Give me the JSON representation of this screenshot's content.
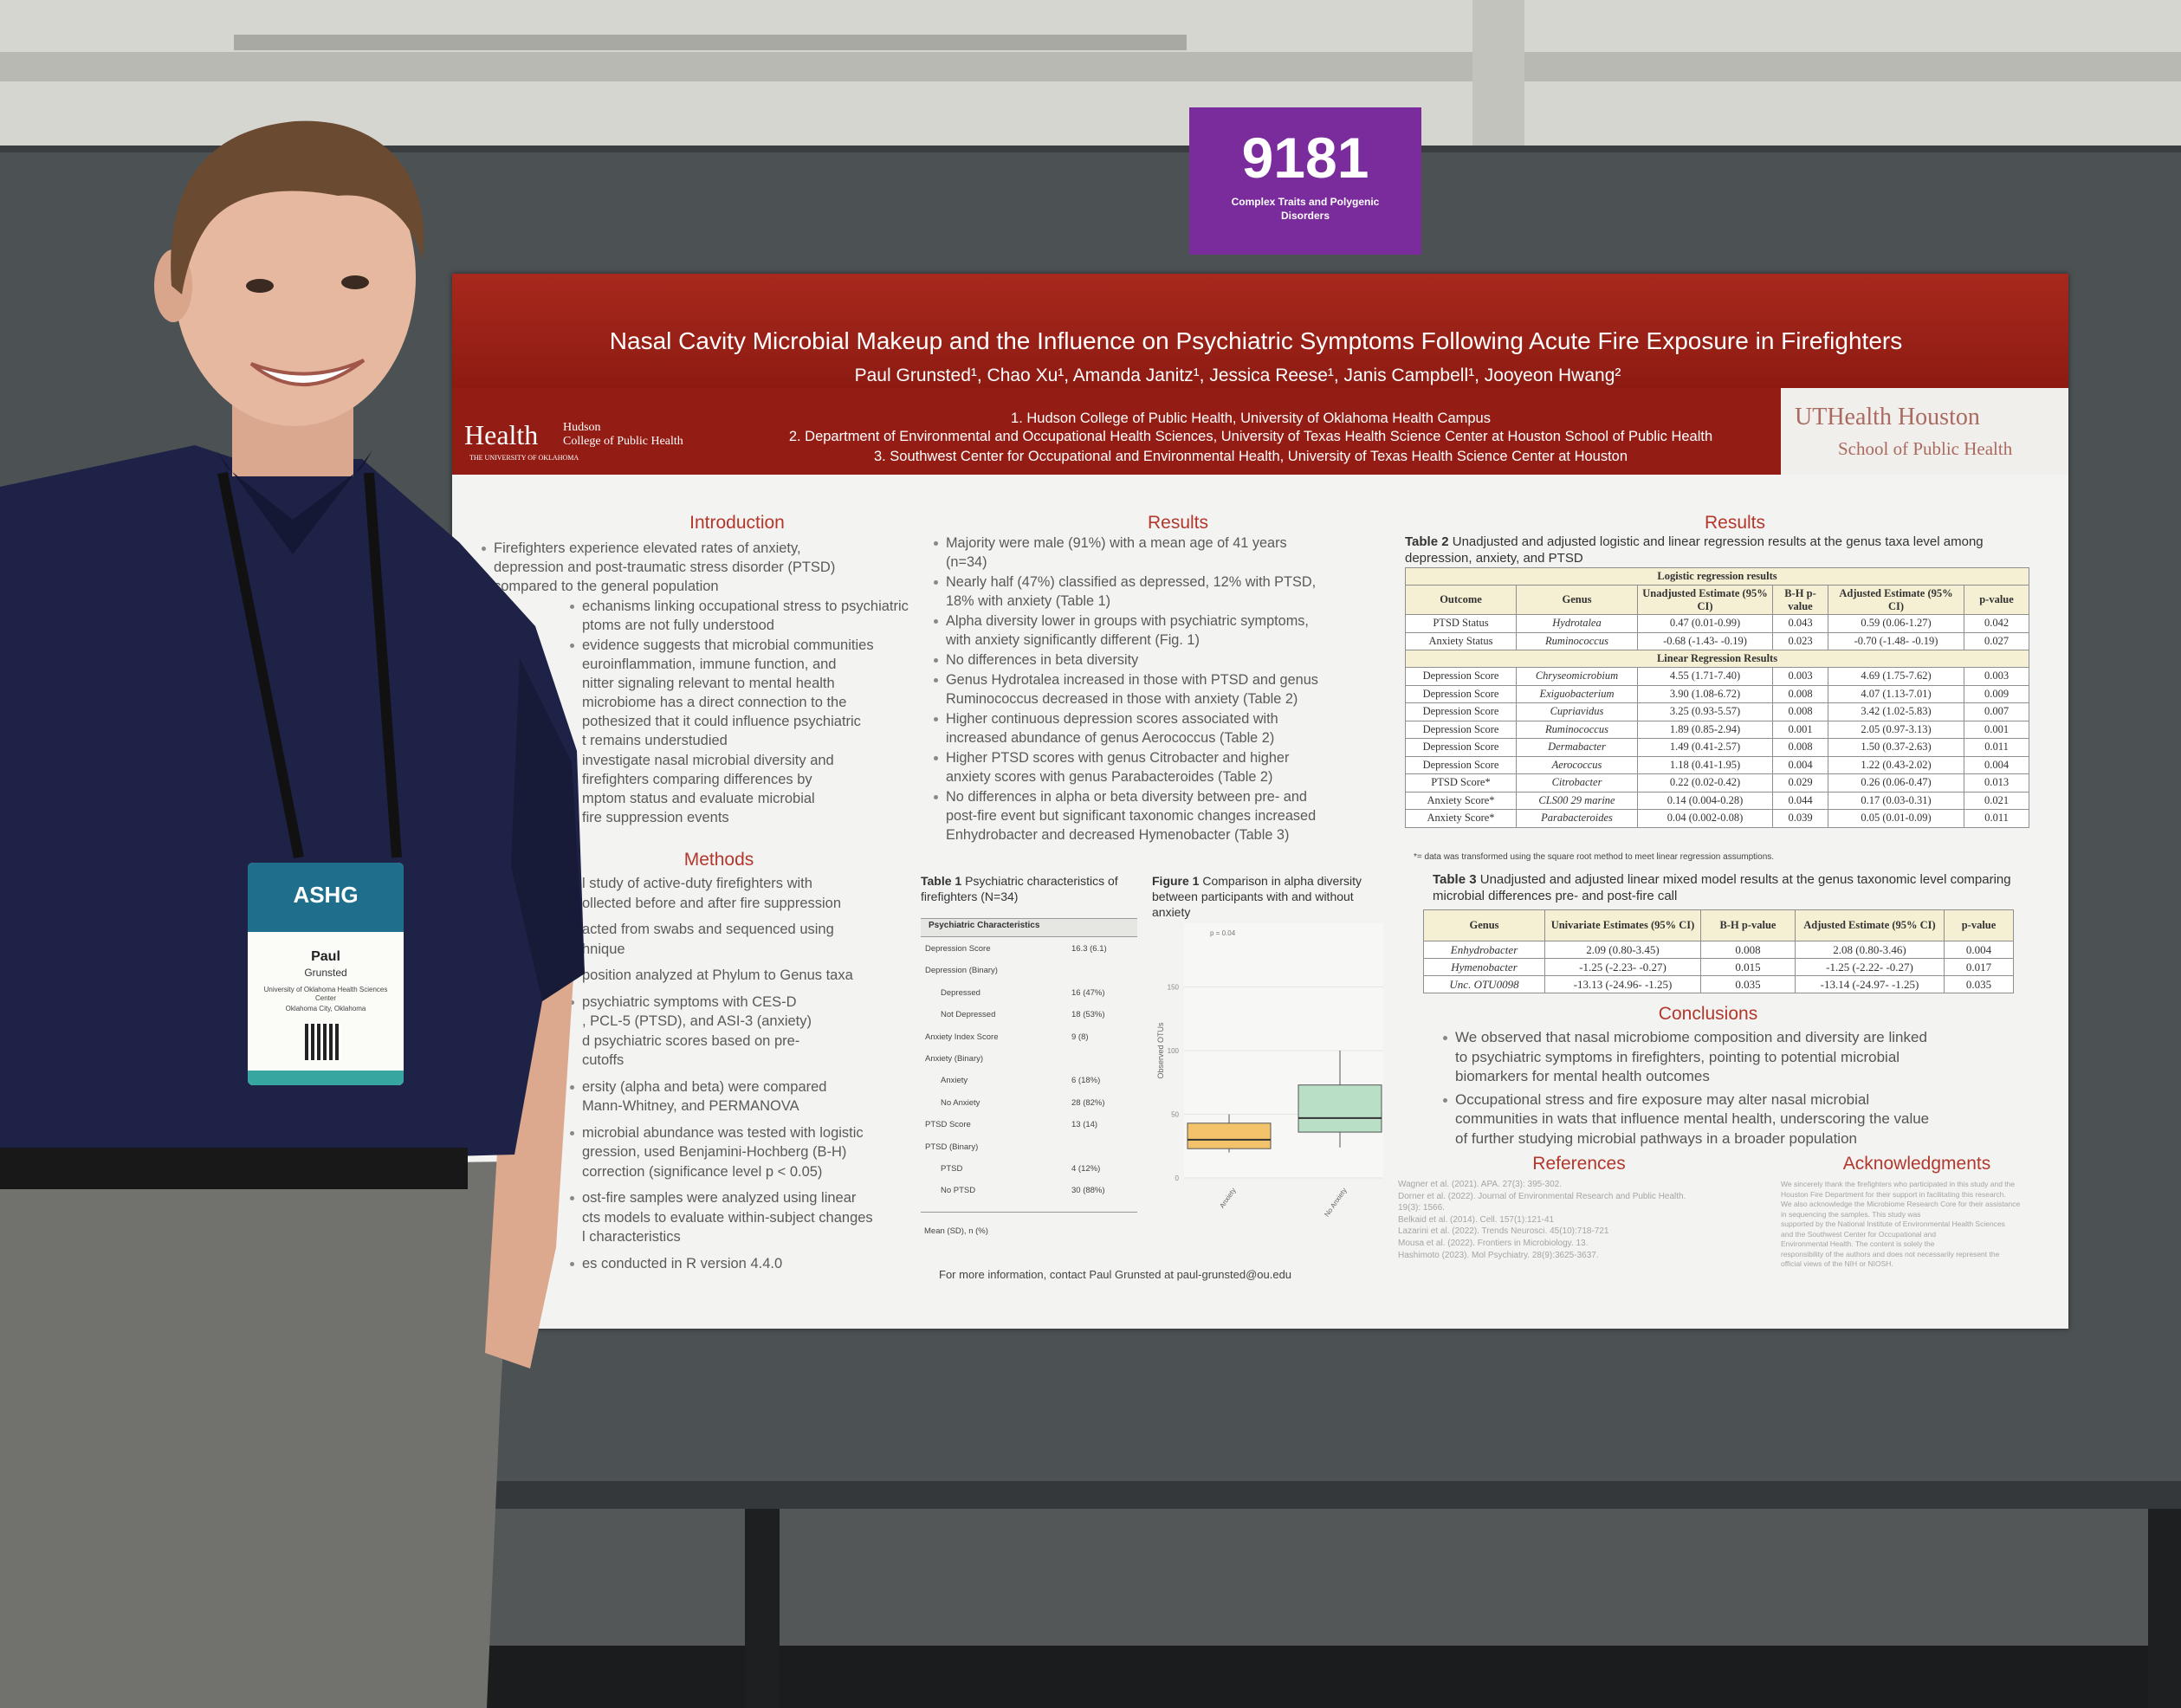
{
  "booth": {
    "number": "9181",
    "topic": [
      "Complex Traits and Polygenic",
      "Disorders"
    ]
  },
  "poster": {
    "title": "Nasal Cavity Microbial Makeup and the Influence on Psychiatric Symptoms Following Acute Fire Exposure in Firefighters",
    "authors": "Paul Grunsted¹, Chao Xu¹, Amanda Janitz¹, Jessica Reese¹, Janis Campbell¹, Jooyeon Hwang²",
    "affiliations": [
      "1.  Hudson College of Public Health, University of Oklahoma Health Campus",
      "2.  Department of Environmental and Occupational Health Sciences, University of Texas Health Science Center at Houston School of Public Health",
      "3.  Southwest Center for Occupational and Environmental Health, University of Texas Health Science Center at Houston"
    ],
    "logo_left": {
      "mark": "Health",
      "line1": "Hudson",
      "line2": "College of Public Health",
      "line3": "THE UNIVERSITY OF OKLAHOMA"
    },
    "logo_right": {
      "line1": "UTHealth Houston",
      "line2": "School of Public Health"
    },
    "introduction": {
      "heading": "Introduction",
      "items": [
        [
          "Firefighters experience elevated rates of anxiety,",
          "depression and post-traumatic stress disorder (PTSD)",
          "compared to the general population"
        ],
        [
          "echanisms linking occupational stress to psychiatric",
          "ptoms are not fully understood"
        ],
        [
          "evidence suggests that microbial communities",
          "euroinflammation, immune function, and",
          "nitter signaling relevant to mental health",
          "microbiome has a direct connection to the",
          "pothesized that it could influence psychiatric",
          "t remains understudied"
        ],
        [
          "investigate nasal microbial diversity and",
          "firefighters comparing differences by",
          "mptom status and evaluate microbial",
          "fire suppression events"
        ]
      ]
    },
    "methods": {
      "heading": "Methods",
      "items": [
        [
          "l study of active-duty firefighters with",
          "ollected before and after fire suppression"
        ],
        [
          "acted from swabs and sequenced using",
          "hnique"
        ],
        [
          "position analyzed at Phylum to Genus taxa"
        ],
        [
          "psychiatric symptoms with CES-D",
          ", PCL-5 (PTSD), and ASI-3 (anxiety)",
          "d psychiatric scores based on pre-",
          "cutoffs"
        ],
        [
          "ersity (alpha and beta) were compared",
          "Mann-Whitney, and PERMANOVA"
        ],
        [
          "microbial abundance was tested with logistic",
          "gression, used Benjamini-Hochberg (B-H)",
          "correction (significance level p < 0.05)"
        ],
        [
          "ost-fire samples were analyzed using linear",
          "cts models to evaluate within-subject changes",
          "l characteristics"
        ],
        [
          "es conducted in R version 4.4.0"
        ]
      ]
    },
    "results": {
      "heading": "Results",
      "items": [
        [
          "Majority were male (91%) with a mean age of 41 years",
          "(n=34)"
        ],
        [
          "Nearly half (47%) classified as depressed, 12% with PTSD,",
          "18% with anxiety (Table 1)"
        ],
        [
          "Alpha diversity lower in groups with psychiatric symptoms,",
          "with anxiety significantly different (Fig. 1)"
        ],
        [
          "No differences in beta diversity"
        ],
        [
          "Genus Hydrotalea increased in those with PTSD and genus",
          "Ruminococcus decreased in those with anxiety (Table 2)"
        ],
        [
          "Higher continuous depression scores associated with",
          "increased abundance of genus Aerococcus (Table 2)"
        ],
        [
          "Higher PTSD scores with genus Citrobacter and higher",
          "anxiety scores with genus Parabacteroides (Table 2)"
        ],
        [
          "No differences in alpha or beta diversity between pre- and",
          "post-fire event but significant taxonomic changes increased",
          "Enhydrobacter and decreased Hymenobacter (Table 3)"
        ]
      ]
    },
    "table1": {
      "label": "Table 1",
      "caption": "Psychiatric characteristics of firefighters (N=34)",
      "header": "Psychiatric Characteristics",
      "rows": [
        {
          "label": "Depression Score",
          "value": "16.3 (6.1)"
        },
        {
          "label": "Depression (Binary)",
          "children": [
            {
              "label": "Depressed",
              "value": "16 (47%)"
            },
            {
              "label": "Not Depressed",
              "value": "18 (53%)"
            }
          ]
        },
        {
          "label": "Anxiety Index Score",
          "value": "9 (8)"
        },
        {
          "label": "Anxiety (Binary)",
          "children": [
            {
              "label": "Anxiety",
              "value": "6 (18%)"
            },
            {
              "label": "No Anxiety",
              "value": "28 (82%)"
            }
          ]
        },
        {
          "label": "PTSD Score",
          "value": "13 (14)"
        },
        {
          "label": "PTSD (Binary)",
          "children": [
            {
              "label": "PTSD",
              "value": "4 (12%)"
            },
            {
              "label": "No PTSD",
              "value": "30 (88%)"
            }
          ]
        }
      ],
      "footnote": "Mean (SD), n (%)"
    },
    "figure1": {
      "label": "Figure 1",
      "caption": "Comparison in alpha diversity between participants with and without anxiety"
    },
    "contact": "For more information, contact Paul Grunsted at paul-grunsted@ou.edu",
    "results2": {
      "heading": "Results"
    },
    "table2": {
      "label": "Table 2",
      "caption": "Unadjusted and adjusted logistic and linear regression results at the genus taxa level among depression, anxiety, and PTSD",
      "header": [
        "Outcome",
        "Genus",
        "Unadjusted Estimate (95% CI)",
        "B-H p-value",
        "Adjusted Estimate (95% CI)",
        "p-value"
      ],
      "sections": [
        {
          "title": "Logistic regression results",
          "rows": [
            [
              "PTSD Status",
              "Hydrotalea",
              "0.47 (0.01-0.99)",
              "0.043",
              "0.59 (0.06-1.27)",
              "0.042"
            ],
            [
              "Anxiety Status",
              "Ruminococcus",
              "-0.68 (-1.43- -0.19)",
              "0.023",
              "-0.70 (-1.48- -0.19)",
              "0.027"
            ]
          ]
        },
        {
          "title": "Linear Regression Results",
          "rows": [
            [
              "Depression Score",
              "Chryseomicrobium",
              "4.55 (1.71-7.40)",
              "0.003",
              "4.69 (1.75-7.62)",
              "0.003"
            ],
            [
              "Depression Score",
              "Exiguobacterium",
              "3.90 (1.08-6.72)",
              "0.008",
              "4.07 (1.13-7.01)",
              "0.009"
            ],
            [
              "Depression Score",
              "Cupriavidus",
              "3.25 (0.93-5.57)",
              "0.008",
              "3.42 (1.02-5.83)",
              "0.007"
            ],
            [
              "Depression Score",
              "Ruminococcus",
              "1.89 (0.85-2.94)",
              "0.001",
              "2.05 (0.97-3.13)",
              "0.001"
            ],
            [
              "Depression Score",
              "Dermabacter",
              "1.49 (0.41-2.57)",
              "0.008",
              "1.50 (0.37-2.63)",
              "0.011"
            ],
            [
              "Depression Score",
              "Aerococcus",
              "1.18 (0.41-1.95)",
              "0.004",
              "1.22 (0.43-2.02)",
              "0.004"
            ],
            [
              "PTSD Score*",
              "Citrobacter",
              "0.22 (0.02-0.42)",
              "0.029",
              "0.26 (0.06-0.47)",
              "0.013"
            ],
            [
              "Anxiety Score*",
              "CLS00 29 marine",
              "0.14 (0.004-0.28)",
              "0.044",
              "0.17 (0.03-0.31)",
              "0.021"
            ],
            [
              "Anxiety Score*",
              "Parabacteroides",
              "0.04 (0.002-0.08)",
              "0.039",
              "0.05 (0.01-0.09)",
              "0.011"
            ]
          ]
        }
      ],
      "footnote": "*= data was transformed using the square root method to meet linear regression assumptions."
    },
    "table3": {
      "label": "Table 3",
      "caption": "Unadjusted and adjusted linear mixed model results at the genus taxonomic level comparing microbial differences pre- and post-fire call",
      "header": [
        "Genus",
        "Univariate Estimates (95% CI)",
        "B-H p-value",
        "Adjusted Estimate (95% CI)",
        "p-value"
      ],
      "rows": [
        [
          "Enhydrobacter",
          "2.09 (0.80-3.45)",
          "0.008",
          "2.08 (0.80-3.46)",
          "0.004"
        ],
        [
          "Hymenobacter",
          "-1.25 (-2.23- -0.27)",
          "0.015",
          "-1.25 (-2.22- -0.27)",
          "0.017"
        ],
        [
          "Unc. OTU0098",
          "-13.13 (-24.96- -1.25)",
          "0.035",
          "-13.14 (-24.97- -1.25)",
          "0.035"
        ]
      ]
    },
    "conclusions": {
      "heading": "Conclusions",
      "items": [
        [
          "We observed that nasal microbiome composition and diversity are linked",
          "to psychiatric symptoms in firefighters, pointing to potential microbial",
          "biomarkers for mental health outcomes"
        ],
        [
          "Occupational stress and fire exposure may alter nasal microbial",
          "communities in wats that influence mental health, underscoring the value",
          "of further studying microbial pathways in a broader population"
        ]
      ]
    },
    "references": {
      "heading": "References",
      "lines": [
        "Wagner et al. (2021). APA. 27(3): 395-302.",
        "Dorner et al. (2022). Journal of Environmental Research and Public Health.",
        "19(3): 1566.",
        "Belkaid et al. (2014). Cell. 157(1):121-41",
        "Lazarini et al. (2022). Trends Neurosci. 45(10):718-721",
        "Mousa et al. (2022). Frontiers in Microbiology. 13.",
        "Hashimoto (2023). Mol Psychiatry. 28(9):3625-3637."
      ]
    },
    "acknowledgments": {
      "heading": "Acknowledgments",
      "lines": [
        "We sincerely thank the firefighters who participated in this study and the",
        "Houston Fire Department for their support in facilitating this research.",
        "We also acknowledge the Microbiome Research Core for their assistance",
        "in sequencing the samples. This study was",
        "supported by the National Institute of Environmental Health Sciences",
        "and the Southwest Center for Occupational and",
        "Environmental Health. The content is solely the",
        "responsibility of the authors and does not necessarily represent the",
        "official views of the NIH or NIOSH."
      ]
    }
  },
  "badge": {
    "org": "ASHG",
    "first": "Paul",
    "last": "Grunsted",
    "affiliation": [
      "University of Oklahoma Health Sciences",
      "Center",
      "Oklahoma City, Oklahoma"
    ]
  },
  "chart_data": {
    "type": "box",
    "ylabel": "Observed OTUs",
    "annotation": "p = 0.04",
    "categories": [
      "Anxiety",
      "No Anxiety"
    ],
    "colors": [
      "#f2c36a",
      "#b9dfc6"
    ],
    "values": [
      {
        "min": 20,
        "q1": 23,
        "median": 30,
        "q3": 43,
        "max": 50
      },
      {
        "min": 24,
        "q1": 36,
        "median": 47,
        "q3": 73,
        "max": 100
      }
    ],
    "ylim": [
      0,
      200
    ],
    "yticks": [
      0,
      50,
      100,
      150
    ]
  }
}
